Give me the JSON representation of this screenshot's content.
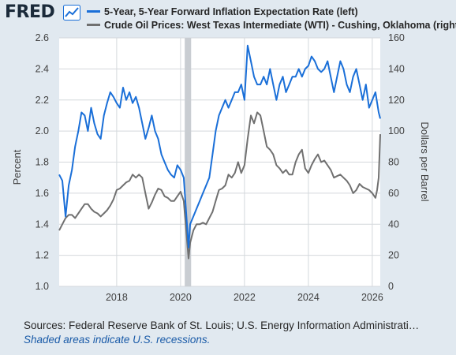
{
  "header": {
    "logo_text": "FRED",
    "logo_icon": "line-chart-icon"
  },
  "chart_data": {
    "type": "line",
    "title": "",
    "xlabel": "",
    "ylabel_left": "Percent",
    "ylabel_right": "Dollars per Barrel",
    "x_range": [
      2016.2,
      2026.25
    ],
    "ylim_left": [
      1.0,
      2.6
    ],
    "ylim_right": [
      0,
      160
    ],
    "x_ticks": [
      2018,
      2020,
      2022,
      2024,
      2026
    ],
    "x_tick_labels": [
      "2018",
      "2020",
      "2022",
      "2024",
      "2026"
    ],
    "y_ticks_left": [
      1.0,
      1.2,
      1.4,
      1.6,
      1.8,
      2.0,
      2.2,
      2.4,
      2.6
    ],
    "y_tick_labels_left": [
      "1.0",
      "1.2",
      "1.4",
      "1.6",
      "1.8",
      "2.0",
      "2.2",
      "2.4",
      "2.6"
    ],
    "y_ticks_right": [
      0,
      20,
      40,
      60,
      80,
      100,
      120,
      140,
      160
    ],
    "y_tick_labels_right": [
      "0",
      "20",
      "40",
      "60",
      "80",
      "100",
      "120",
      "140",
      "160"
    ],
    "grid": true,
    "legend_position": "top",
    "recessions": [
      {
        "start": 2020.13,
        "end": 2020.33
      }
    ],
    "series": [
      {
        "name": "5-Year, 5-Year Forward Inflation Expectation Rate (left)",
        "axis": "left",
        "color": "#1a6fd8",
        "x": [
          2016.2,
          2016.3,
          2016.4,
          2016.5,
          2016.6,
          2016.7,
          2016.8,
          2016.9,
          2017.0,
          2017.1,
          2017.2,
          2017.3,
          2017.4,
          2017.5,
          2017.6,
          2017.7,
          2017.8,
          2017.9,
          2018.0,
          2018.1,
          2018.2,
          2018.3,
          2018.4,
          2018.5,
          2018.6,
          2018.7,
          2018.8,
          2018.9,
          2019.0,
          2019.1,
          2019.2,
          2019.3,
          2019.4,
          2019.5,
          2019.6,
          2019.7,
          2019.8,
          2019.9,
          2020.0,
          2020.1,
          2020.2,
          2020.25,
          2020.3,
          2020.4,
          2020.5,
          2020.6,
          2020.7,
          2020.8,
          2020.9,
          2021.0,
          2021.1,
          2021.2,
          2021.3,
          2021.4,
          2021.5,
          2021.6,
          2021.7,
          2021.8,
          2021.9,
          2022.0,
          2022.1,
          2022.2,
          2022.3,
          2022.4,
          2022.5,
          2022.6,
          2022.7,
          2022.8,
          2022.9,
          2023.0,
          2023.1,
          2023.2,
          2023.3,
          2023.4,
          2023.5,
          2023.6,
          2023.7,
          2023.8,
          2023.9,
          2024.0,
          2024.1,
          2024.2,
          2024.3,
          2024.4,
          2024.5,
          2024.6,
          2024.7,
          2024.8,
          2024.9,
          2025.0,
          2025.1,
          2025.2,
          2025.3,
          2025.4,
          2025.5,
          2025.6,
          2025.7,
          2025.8,
          2025.9,
          2026.0,
          2026.1,
          2026.2,
          2026.25
        ],
        "values": [
          1.72,
          1.68,
          1.45,
          1.65,
          1.75,
          1.9,
          2.0,
          2.12,
          2.1,
          2.0,
          2.15,
          2.05,
          1.98,
          1.95,
          2.1,
          2.18,
          2.25,
          2.22,
          2.18,
          2.15,
          2.28,
          2.2,
          2.25,
          2.18,
          2.22,
          2.15,
          2.05,
          1.95,
          2.02,
          2.1,
          2.0,
          1.95,
          1.85,
          1.8,
          1.75,
          1.72,
          1.7,
          1.78,
          1.75,
          1.7,
          1.4,
          1.25,
          1.4,
          1.45,
          1.5,
          1.55,
          1.6,
          1.65,
          1.7,
          1.85,
          2.0,
          2.1,
          2.15,
          2.2,
          2.15,
          2.2,
          2.25,
          2.25,
          2.3,
          2.2,
          2.55,
          2.45,
          2.35,
          2.3,
          2.3,
          2.35,
          2.3,
          2.4,
          2.3,
          2.2,
          2.3,
          2.35,
          2.25,
          2.3,
          2.35,
          2.35,
          2.4,
          2.35,
          2.4,
          2.42,
          2.48,
          2.45,
          2.4,
          2.38,
          2.4,
          2.45,
          2.35,
          2.25,
          2.35,
          2.45,
          2.4,
          2.3,
          2.25,
          2.35,
          2.4,
          2.3,
          2.2,
          2.3,
          2.15,
          2.2,
          2.25,
          2.12,
          2.08
        ]
      },
      {
        "name": "Crude Oil Prices: West Texas Intermediate (WTI) - Cushing, Oklahoma (right)",
        "axis": "right",
        "color": "#707070",
        "x": [
          2016.2,
          2016.3,
          2016.4,
          2016.5,
          2016.6,
          2016.7,
          2016.8,
          2016.9,
          2017.0,
          2017.1,
          2017.2,
          2017.3,
          2017.4,
          2017.5,
          2017.6,
          2017.7,
          2017.8,
          2017.9,
          2018.0,
          2018.1,
          2018.2,
          2018.3,
          2018.4,
          2018.5,
          2018.6,
          2018.7,
          2018.8,
          2018.9,
          2019.0,
          2019.1,
          2019.2,
          2019.3,
          2019.4,
          2019.5,
          2019.6,
          2019.7,
          2019.8,
          2019.9,
          2020.0,
          2020.1,
          2020.2,
          2020.25,
          2020.3,
          2020.4,
          2020.5,
          2020.6,
          2020.7,
          2020.8,
          2020.9,
          2021.0,
          2021.1,
          2021.2,
          2021.3,
          2021.4,
          2021.5,
          2021.6,
          2021.7,
          2021.8,
          2021.9,
          2022.0,
          2022.1,
          2022.2,
          2022.3,
          2022.4,
          2022.5,
          2022.6,
          2022.7,
          2022.8,
          2022.9,
          2023.0,
          2023.1,
          2023.2,
          2023.3,
          2023.4,
          2023.5,
          2023.6,
          2023.7,
          2023.8,
          2023.9,
          2024.0,
          2024.1,
          2024.2,
          2024.3,
          2024.4,
          2024.5,
          2024.6,
          2024.7,
          2024.8,
          2024.9,
          2025.0,
          2025.1,
          2025.2,
          2025.3,
          2025.4,
          2025.5,
          2025.6,
          2025.7,
          2025.8,
          2025.9,
          2026.0,
          2026.1,
          2026.15,
          2026.2,
          2026.25
        ],
        "values": [
          36,
          40,
          44,
          46,
          46,
          44,
          47,
          50,
          53,
          53,
          50,
          48,
          47,
          45,
          47,
          49,
          52,
          56,
          62,
          63,
          65,
          67,
          68,
          72,
          70,
          72,
          70,
          60,
          50,
          54,
          59,
          63,
          62,
          58,
          57,
          55,
          55,
          58,
          61,
          55,
          30,
          18,
          28,
          36,
          40,
          40,
          41,
          40,
          44,
          48,
          55,
          62,
          63,
          65,
          72,
          70,
          73,
          80,
          73,
          78,
          95,
          110,
          105,
          112,
          110,
          100,
          90,
          88,
          85,
          78,
          76,
          73,
          75,
          72,
          72,
          80,
          85,
          88,
          76,
          73,
          78,
          82,
          85,
          80,
          81,
          78,
          75,
          70,
          71,
          72,
          70,
          68,
          65,
          60,
          62,
          66,
          64,
          63,
          62,
          60,
          57,
          62,
          70,
          98
        ]
      }
    ]
  },
  "footer": {
    "source": "Sources: Federal Reserve Bank of St. Louis; U.S. Energy Information Administrati…",
    "recession_note": "Shaded areas indicate U.S. recessions."
  }
}
